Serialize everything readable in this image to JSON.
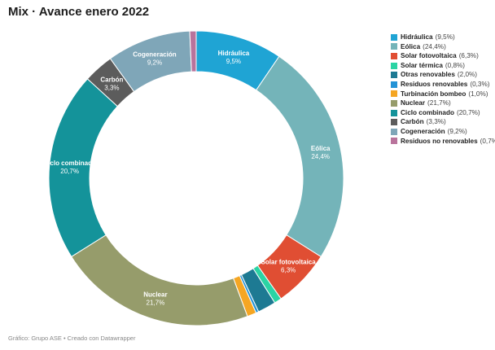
{
  "title": "Mix · Avance enero 2022",
  "footer": "Gráfico: Grupo ASE • Creado con Datawrapper",
  "chart_data": {
    "type": "pie",
    "donut": true,
    "title": "Mix · Avance enero 2022",
    "legend_position": "right",
    "slices": [
      {
        "name": "Hidráulica",
        "value": 9.5,
        "label": "9,5%",
        "color": "#1fa4d4",
        "show_label": true,
        "label_color": "#ffffff"
      },
      {
        "name": "Eólica",
        "value": 24.4,
        "label": "24,4%",
        "color": "#74b4b9",
        "show_label": true,
        "label_color": "#ffffff"
      },
      {
        "name": "Solar fotovoltaica",
        "value": 6.3,
        "label": "6,3%",
        "color": "#e04e33",
        "show_label": true,
        "label_color": "#ffffff"
      },
      {
        "name": "Solar térmica",
        "value": 0.8,
        "label": "0,8%",
        "color": "#2bd4a4",
        "show_label": false,
        "label_color": "#ffffff"
      },
      {
        "name": "Otras renovables",
        "value": 2.0,
        "label": "2,0%",
        "color": "#1d7a93",
        "show_label": false,
        "label_color": "#ffffff"
      },
      {
        "name": "Residuos renovables",
        "value": 0.3,
        "label": "0,3%",
        "color": "#2493d6",
        "show_label": false,
        "label_color": "#ffffff"
      },
      {
        "name": "Turbinación bombeo",
        "value": 1.0,
        "label": "1,0%",
        "color": "#f5a623",
        "show_label": false,
        "label_color": "#ffffff"
      },
      {
        "name": "Nuclear",
        "value": 21.7,
        "label": "21,7%",
        "color": "#969c6b",
        "show_label": true,
        "label_color": "#ffffff"
      },
      {
        "name": "Ciclo combinado",
        "value": 20.7,
        "label": "20,7%",
        "color": "#14939a",
        "show_label": true,
        "label_color": "#ffffff"
      },
      {
        "name": "Carbón",
        "value": 3.3,
        "label": "3,3%",
        "color": "#5c5c5c",
        "show_label": true,
        "label_color": "#ffffff"
      },
      {
        "name": "Cogeneración",
        "value": 9.2,
        "label": "9,2%",
        "color": "#7fa6b8",
        "show_label": true,
        "label_color": "#ffffff"
      },
      {
        "name": "Residuos no renovables",
        "value": 0.7,
        "label": "0,7%",
        "color": "#b9739c",
        "show_label": false,
        "label_color": "#ffffff"
      }
    ]
  }
}
